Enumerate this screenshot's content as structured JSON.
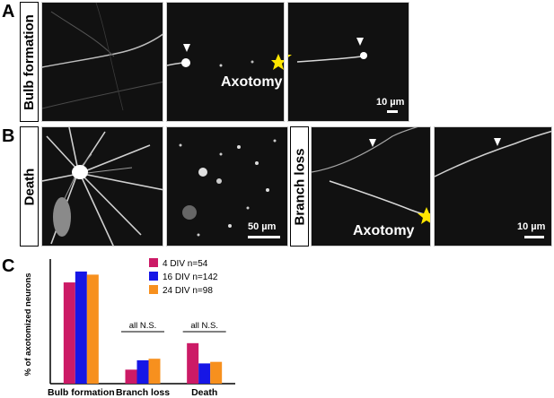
{
  "panels": {
    "a_letter": "A",
    "b_letter": "B",
    "c_letter": "C"
  },
  "row_labels": {
    "bulb_formation": "Bulb formation",
    "death": "Death",
    "branch_loss": "Branch loss"
  },
  "image_text": {
    "axotomy_a": "Axotomy",
    "axotomy_b": "Axotomy",
    "scale_a": "10 µm",
    "scale_b_death": "50 µm",
    "scale_b_branch": "10 µm"
  },
  "colors": {
    "series_4div": "#cc1a66",
    "series_16div": "#1616e6",
    "series_24div": "#f7901e",
    "star": "#ffe600",
    "arrowhead": "#ffffff"
  },
  "icons": {
    "star": "star-icon",
    "arrowhead": "arrowhead-icon"
  },
  "chart_data": {
    "type": "bar",
    "ylabel": "% of axotomized neurons",
    "categories": [
      "Bulb formation",
      "Branch loss",
      "Death"
    ],
    "series": [
      {
        "name": "4 DIV n=54",
        "values": [
          65,
          9,
          26
        ]
      },
      {
        "name": "16 DIV n=142",
        "values": [
          72,
          15,
          13
        ]
      },
      {
        "name": "24 DIV n=98",
        "values": [
          70,
          16,
          14
        ]
      }
    ],
    "annotations": [
      "all N.S.",
      "all N.S."
    ],
    "ylim": [
      0,
      80
    ],
    "grid": false,
    "legend_position": "top-right"
  }
}
